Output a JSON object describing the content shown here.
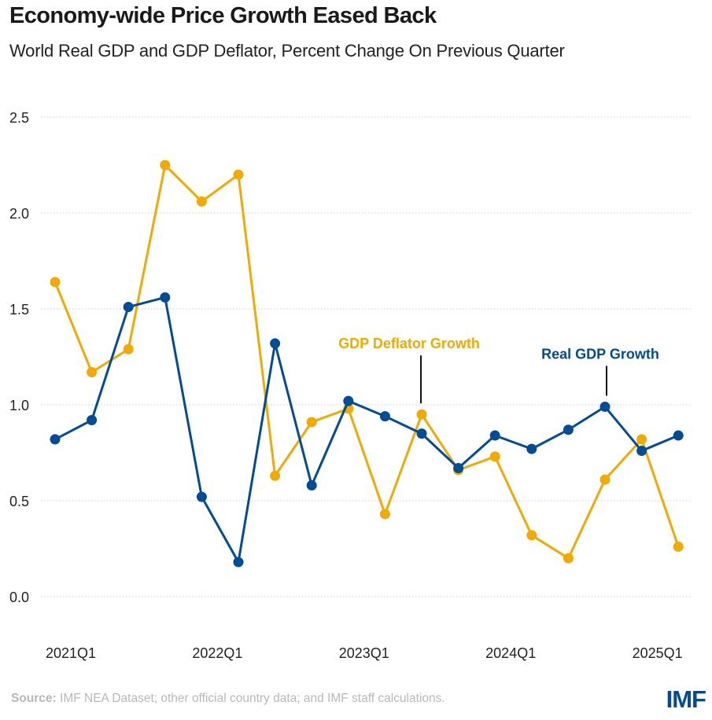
{
  "header": {
    "title": "Economy-wide Price Growth Eased Back",
    "subtitle": "World Real GDP and GDP Deflator, Percent Change On Previous Quarter"
  },
  "footer": {
    "source_label": "Source:",
    "source_text": " IMF NEA Dataset; other official country data; and IMF staff calculations.",
    "logo": "IMF"
  },
  "colors": {
    "real_gdp": "#004C97",
    "deflator": "#F2A900",
    "grid": "#c8c8c8"
  },
  "chart_data": {
    "type": "line",
    "title": "Economy-wide Price Growth Eased Back",
    "subtitle": "World Real GDP and GDP Deflator, Percent Change On Previous Quarter",
    "xlabel": "",
    "ylabel": "",
    "ylim": [
      0,
      2.5
    ],
    "yticks": [
      "0.0",
      "0.5",
      "1.0",
      "1.5",
      "2.0",
      "2.5"
    ],
    "ytick_values": [
      0,
      0.5,
      1.0,
      1.5,
      2.0,
      2.5
    ],
    "grid": true,
    "x": [
      "2021Q1",
      "2021Q2",
      "2021Q3",
      "2021Q4",
      "2022Q1",
      "2022Q2",
      "2022Q3",
      "2022Q4",
      "2023Q1",
      "2023Q2",
      "2023Q3",
      "2023Q4",
      "2024Q1",
      "2024Q2",
      "2024Q3",
      "2024Q4",
      "2025Q1",
      "2025Q2"
    ],
    "xtick_labels": [
      {
        "label": "2021Q1",
        "index": 0
      },
      {
        "label": "2022Q1",
        "index": 4
      },
      {
        "label": "2023Q1",
        "index": 8
      },
      {
        "label": "2024Q1",
        "index": 12
      },
      {
        "label": "2025Q1",
        "index": 16
      }
    ],
    "series": [
      {
        "name": "GDP Deflator Growth",
        "key": "deflator",
        "values": [
          1.64,
          1.17,
          1.29,
          2.25,
          2.06,
          2.2,
          0.63,
          0.91,
          0.98,
          0.43,
          0.95,
          0.66,
          0.73,
          0.32,
          0.2,
          0.61,
          0.82,
          0.26
        ]
      },
      {
        "name": "Real GDP Growth",
        "key": "real_gdp",
        "values": [
          0.82,
          0.92,
          1.51,
          1.56,
          0.52,
          0.18,
          1.32,
          0.58,
          1.02,
          0.94,
          0.85,
          0.67,
          0.84,
          0.77,
          0.87,
          0.99,
          0.76,
          0.84
        ]
      }
    ],
    "annotations": [
      {
        "text": "GDP Deflator Growth",
        "series": "deflator",
        "index": 10
      },
      {
        "text": "Real GDP Growth",
        "series": "real_gdp",
        "index": 15
      }
    ],
    "legend": "inline-annotations"
  }
}
